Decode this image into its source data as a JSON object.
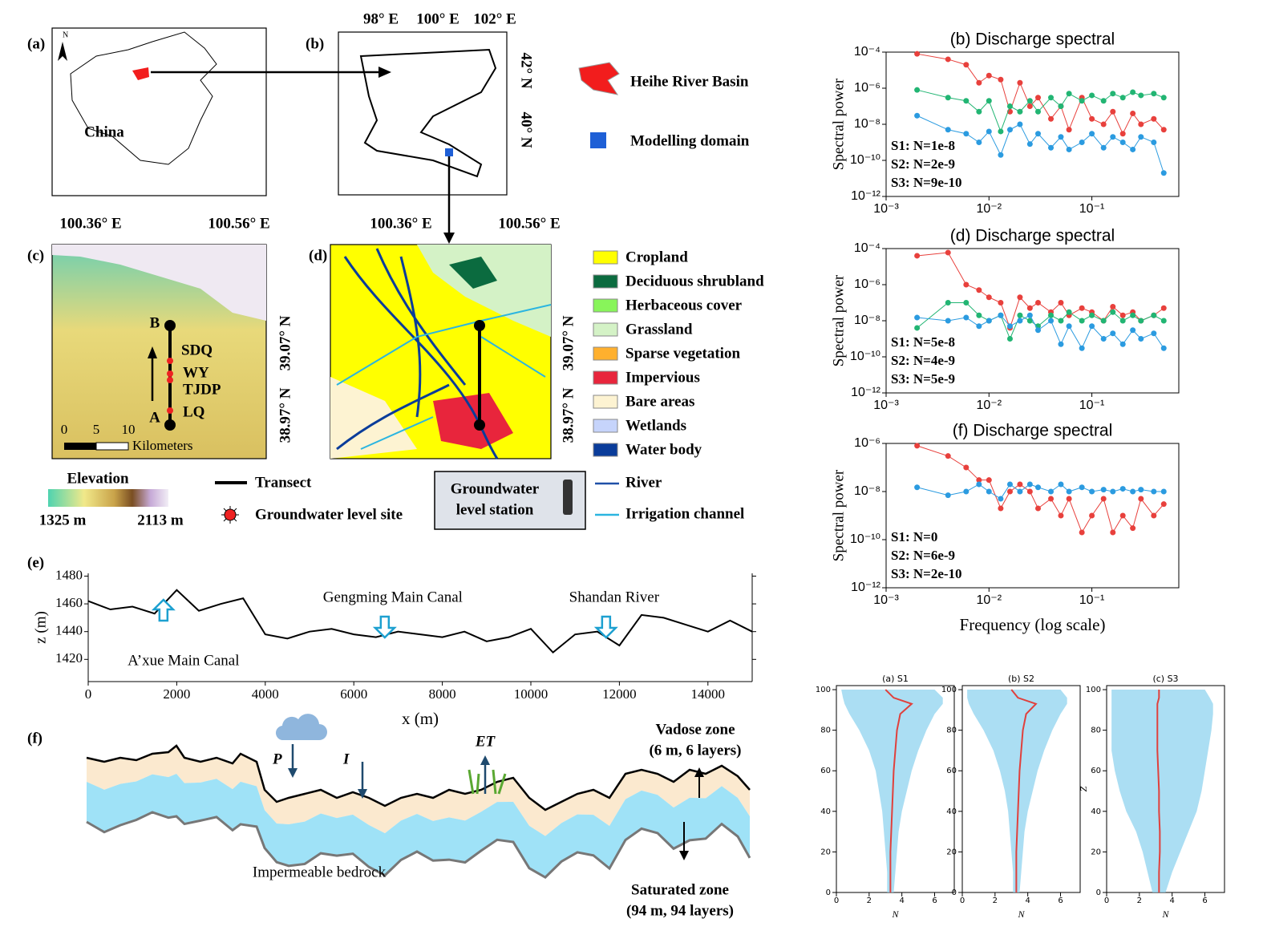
{
  "maps": {
    "a": {
      "label": "(a)",
      "north": "N",
      "country": "China"
    },
    "b": {
      "label": "(b)",
      "lon": [
        "98° E",
        "100° E",
        "102° E"
      ],
      "lat": [
        "42° N",
        "40° N"
      ]
    },
    "c": {
      "label": "(c)",
      "lon": [
        "100.36° E",
        "100.56° E"
      ],
      "lat": [
        "39.07° N",
        "38.97° N"
      ],
      "sites": [
        "SDQ",
        "WY",
        "TJDP",
        "LQ"
      ],
      "ends": [
        "B",
        "A"
      ],
      "scale": [
        "0",
        "5",
        "10"
      ],
      "scale_unit": "Kilometers"
    },
    "d": {
      "label": "(d)",
      "lon": [
        "100.36° E",
        "100.56° E"
      ],
      "lat": [
        "39.07° N",
        "38.97° N"
      ]
    },
    "basin_legend": [
      {
        "name": "Heihe River Basin",
        "color": "#f21d1d"
      },
      {
        "name": "Modelling domain",
        "color": "#1e5fd6"
      }
    ],
    "landcover": [
      {
        "name": "Cropland",
        "color": "#ffff00"
      },
      {
        "name": "Deciduous shrubland",
        "color": "#0b6b3f"
      },
      {
        "name": "Herbaceous cover",
        "color": "#88f55a"
      },
      {
        "name": "Grassland",
        "color": "#d4f2c6"
      },
      {
        "name": "Sparse vegetation",
        "color": "#ffb02e"
      },
      {
        "name": "Impervious",
        "color": "#e8253c"
      },
      {
        "name": "Bare areas",
        "color": "#fdf3d2"
      },
      {
        "name": "Wetlands",
        "color": "#c6d4fb"
      },
      {
        "name": "Water body",
        "color": "#0a3c9a"
      }
    ],
    "elevation": {
      "title": "Elevation",
      "min": "1325 m",
      "max": "2113 m"
    },
    "symbols": {
      "transect": "Transect",
      "site": "Groundwater level site",
      "station": [
        "Groundwater",
        "level station"
      ],
      "river": {
        "name": "River",
        "color": "#2050a8"
      },
      "channel": {
        "name": "Irrigation channel",
        "color": "#2bb5e0"
      }
    }
  },
  "schematic": {
    "label": "(f)",
    "P": "P",
    "I": "I",
    "ET": "ET",
    "vadose": [
      "Vadose zone",
      "(6 m, 6 layers)"
    ],
    "saturated": [
      "Saturated zone",
      "(94 m, 94 layers)"
    ],
    "bedrock": "Impermeable bedrock"
  },
  "chart_data": [
    {
      "type": "line",
      "label": "(e)",
      "xlabel": "x (m)",
      "ylabel": "z (m)",
      "color": "#000000",
      "x": [
        0,
        500,
        1000,
        1500,
        2000,
        2500,
        3000,
        3500,
        4000,
        4500,
        5000,
        5500,
        6000,
        6500,
        7000,
        7500,
        8000,
        8500,
        9000,
        9500,
        10000,
        10500,
        11000,
        11500,
        12000,
        12500,
        13000,
        13500,
        14000,
        14500,
        15000
      ],
      "values": [
        1462,
        1456,
        1458,
        1453,
        1470,
        1455,
        1460,
        1464,
        1438,
        1435,
        1440,
        1442,
        1438,
        1436,
        1440,
        1438,
        1436,
        1440,
        1433,
        1436,
        1442,
        1425,
        1438,
        1440,
        1430,
        1452,
        1450,
        1445,
        1440,
        1448,
        1440
      ],
      "xlim": [
        0,
        15000
      ],
      "ylim": [
        1404,
        1482
      ],
      "xticks": [
        0,
        2000,
        4000,
        6000,
        8000,
        10000,
        12000,
        14000
      ],
      "yticks": [
        1420,
        1440,
        1460,
        1480
      ],
      "annotations": [
        {
          "text": "A’xue Main Canal",
          "x": 1700,
          "direction": "up"
        },
        {
          "text": "Gengming Main Canal",
          "x": 6700,
          "direction": "down"
        },
        {
          "text": "Shandan River",
          "x": 11700,
          "direction": "down"
        }
      ]
    },
    {
      "type": "line",
      "markers": true,
      "xlog": true,
      "ylog": true,
      "title": "(b) Discharge spectral",
      "ylabel": "Spectral power",
      "x": [
        0.002,
        0.004,
        0.006,
        0.008,
        0.01,
        0.013,
        0.016,
        0.02,
        0.025,
        0.03,
        0.04,
        0.05,
        0.06,
        0.08,
        0.1,
        0.13,
        0.16,
        0.2,
        0.25,
        0.3,
        0.4,
        0.5
      ],
      "series": [
        {
          "color": "#e8403c",
          "values": [
            8e-05,
            4e-05,
            2e-05,
            2e-06,
            5e-06,
            3e-06,
            5e-08,
            2e-06,
            1e-07,
            3e-07,
            2e-08,
            1e-07,
            5e-09,
            3e-07,
            2e-08,
            1e-08,
            5e-08,
            3e-09,
            4e-08,
            1e-08,
            2e-08,
            5e-09
          ]
        },
        {
          "color": "#22b573",
          "values": [
            8e-07,
            3e-07,
            2e-07,
            5e-08,
            2e-07,
            4e-09,
            1e-07,
            5e-08,
            2e-07,
            5e-08,
            3e-07,
            1e-07,
            5e-07,
            2e-07,
            4e-07,
            2e-07,
            5e-07,
            3e-07,
            6e-07,
            4e-07,
            5e-07,
            3e-07
          ]
        },
        {
          "color": "#2b9be0",
          "values": [
            3e-08,
            5e-09,
            3e-09,
            1e-09,
            4e-09,
            2e-10,
            5e-09,
            1e-08,
            8e-10,
            3e-09,
            5e-10,
            2e-09,
            4e-10,
            1e-09,
            3e-09,
            5e-10,
            2e-09,
            1e-09,
            4e-10,
            2e-09,
            1e-09,
            2e-11
          ]
        }
      ],
      "xlim": [
        0.001,
        0.7
      ],
      "ylim": [
        1e-12,
        0.0001
      ],
      "xticks": [
        {
          "value": 0.001,
          "label": "10⁻³"
        },
        {
          "value": 0.01,
          "label": "10⁻²"
        },
        {
          "value": 0.1,
          "label": "10⁻¹"
        }
      ],
      "yticks": [
        {
          "value": 1e-12,
          "label": "10⁻¹²"
        },
        {
          "value": 1e-10,
          "label": "10⁻¹⁰"
        },
        {
          "value": 1e-08,
          "label": "10⁻⁸"
        },
        {
          "value": 1e-06,
          "label": "10⁻⁶"
        },
        {
          "value": 0.0001,
          "label": "10⁻⁴"
        }
      ],
      "notes": [
        "S1: N=1e-8",
        "S2: N=2e-9",
        "S3: N=9e-10"
      ]
    },
    {
      "type": "line",
      "markers": true,
      "xlog": true,
      "ylog": true,
      "title": "(d) Discharge spectral",
      "ylabel": "Spectral power",
      "x": [
        0.002,
        0.004,
        0.006,
        0.008,
        0.01,
        0.013,
        0.016,
        0.02,
        0.025,
        0.03,
        0.04,
        0.05,
        0.06,
        0.08,
        0.1,
        0.13,
        0.16,
        0.2,
        0.25,
        0.3,
        0.4,
        0.5
      ],
      "series": [
        {
          "color": "#e8403c",
          "values": [
            4e-05,
            6e-05,
            1e-06,
            5e-07,
            2e-07,
            1e-07,
            4e-09,
            2e-07,
            5e-08,
            1e-07,
            3e-08,
            1e-07,
            2e-08,
            5e-08,
            3e-08,
            1e-08,
            6e-08,
            2e-08,
            3e-08,
            1e-08,
            2e-08,
            5e-08
          ]
        },
        {
          "color": "#22b573",
          "values": [
            4e-09,
            1e-07,
            1e-07,
            2e-08,
            1e-08,
            2e-08,
            1e-09,
            2e-08,
            1e-08,
            5e-09,
            2e-08,
            1e-08,
            3e-08,
            1e-08,
            2e-08,
            1e-08,
            3e-08,
            1e-08,
            2e-08,
            1e-08,
            2e-08,
            1e-08
          ]
        },
        {
          "color": "#2b9be0",
          "values": [
            1.5e-08,
            1e-08,
            1.5e-08,
            5e-09,
            1e-08,
            2e-08,
            5e-09,
            1e-08,
            2e-08,
            3e-09,
            1e-08,
            5e-10,
            5e-09,
            3e-10,
            5e-09,
            1e-09,
            2e-09,
            5e-10,
            3e-09,
            1e-09,
            2e-09,
            3e-10
          ]
        }
      ],
      "xlim": [
        0.001,
        0.7
      ],
      "ylim": [
        1e-12,
        0.0001
      ],
      "xticks": [
        {
          "value": 0.001,
          "label": "10⁻³"
        },
        {
          "value": 0.01,
          "label": "10⁻²"
        },
        {
          "value": 0.1,
          "label": "10⁻¹"
        }
      ],
      "yticks": [
        {
          "value": 1e-12,
          "label": "10⁻¹²"
        },
        {
          "value": 1e-10,
          "label": "10⁻¹⁰"
        },
        {
          "value": 1e-08,
          "label": "10⁻⁸"
        },
        {
          "value": 1e-06,
          "label": "10⁻⁶"
        },
        {
          "value": 0.0001,
          "label": "10⁻⁴"
        }
      ],
      "notes": [
        "S1: N=5e-8",
        "S2: N=4e-9",
        "S3: N=5e-9"
      ]
    },
    {
      "type": "line",
      "markers": true,
      "xlog": true,
      "ylog": true,
      "title": "(f) Discharge spectral",
      "ylabel": "Spectral power",
      "xlabel": "Frequency (log scale)",
      "x": [
        0.002,
        0.004,
        0.006,
        0.008,
        0.01,
        0.013,
        0.016,
        0.02,
        0.025,
        0.03,
        0.04,
        0.05,
        0.06,
        0.08,
        0.1,
        0.13,
        0.16,
        0.2,
        0.25,
        0.3,
        0.4,
        0.5
      ],
      "series": [
        {
          "color": "#e8403c",
          "values": [
            8e-07,
            3e-07,
            1e-07,
            3e-08,
            3e-08,
            2e-09,
            1e-08,
            2e-08,
            1e-08,
            2e-09,
            5e-09,
            1e-09,
            5e-09,
            2e-10,
            1e-09,
            5e-09,
            2e-10,
            1e-09,
            3e-10,
            5e-09,
            1e-09,
            3e-09
          ]
        },
        {
          "color": "#2b9be0",
          "values": [
            1.5e-08,
            7e-09,
            1e-08,
            2e-08,
            1e-08,
            5e-09,
            2e-08,
            1e-08,
            2e-08,
            1.5e-08,
            1e-08,
            2e-08,
            1e-08,
            1.5e-08,
            1e-08,
            1.2e-08,
            1e-08,
            1.3e-08,
            1e-08,
            1.2e-08,
            1e-08,
            1e-08
          ]
        }
      ],
      "xlim": [
        0.001,
        0.7
      ],
      "ylim": [
        1e-12,
        1e-06
      ],
      "xticks": [
        {
          "value": 0.001,
          "label": "10⁻³"
        },
        {
          "value": 0.01,
          "label": "10⁻²"
        },
        {
          "value": 0.1,
          "label": "10⁻¹"
        }
      ],
      "yticks": [
        {
          "value": 1e-12,
          "label": "10⁻¹²"
        },
        {
          "value": 1e-10,
          "label": "10⁻¹⁰"
        },
        {
          "value": 1e-08,
          "label": "10⁻⁸"
        },
        {
          "value": 1e-06,
          "label": "10⁻⁶"
        }
      ],
      "notes": [
        "S1: N=0",
        "S2: N=6e-9",
        "S3: N=2e-10"
      ]
    },
    {
      "type": "line",
      "title": "(a) S1",
      "xlabel": "N",
      "y": [
        0,
        10,
        20,
        30,
        40,
        50,
        60,
        70,
        80,
        88,
        93,
        96,
        100
      ],
      "series": [
        {
          "color": "#e0403c",
          "values": [
            3.3,
            3.3,
            3.3,
            3.35,
            3.4,
            3.45,
            3.5,
            3.6,
            3.7,
            3.9,
            4.6,
            3.5,
            3.0
          ]
        }
      ],
      "band": {
        "color": "#8fd3ef",
        "lower": [
          3.1,
          3.1,
          3.0,
          2.9,
          2.8,
          2.6,
          2.4,
          2.0,
          1.4,
          0.8,
          0.5,
          0.4,
          0.3
        ],
        "upper": [
          3.5,
          3.6,
          3.7,
          3.8,
          4.0,
          4.3,
          4.6,
          5.0,
          5.5,
          6.0,
          6.5,
          6.5,
          6.0
        ]
      },
      "xlim": [
        0,
        7.2
      ],
      "ylim": [
        0,
        102
      ],
      "xticks": [
        0,
        2,
        4,
        6
      ],
      "yticks": [
        0,
        20,
        40,
        60,
        80,
        100
      ]
    },
    {
      "type": "line",
      "title": "(b) S2",
      "xlabel": "N",
      "y": [
        0,
        10,
        20,
        30,
        40,
        50,
        60,
        70,
        80,
        88,
        93,
        96,
        100
      ],
      "series": [
        {
          "color": "#e0403c",
          "values": [
            3.3,
            3.3,
            3.3,
            3.35,
            3.4,
            3.45,
            3.5,
            3.6,
            3.7,
            3.9,
            4.5,
            3.4,
            3.0
          ]
        }
      ],
      "band": {
        "color": "#8fd3ef",
        "lower": [
          3.1,
          3.1,
          3.0,
          2.9,
          2.8,
          2.6,
          2.3,
          1.9,
          1.3,
          0.7,
          0.4,
          0.3,
          0.3
        ],
        "upper": [
          3.5,
          3.6,
          3.7,
          3.8,
          4.0,
          4.3,
          4.6,
          5.0,
          5.5,
          6.0,
          6.4,
          6.4,
          6.0
        ]
      },
      "xlim": [
        0,
        7.2
      ],
      "ylim": [
        0,
        102
      ],
      "xticks": [
        0,
        2,
        4,
        6
      ],
      "yticks": [
        0,
        20,
        40,
        60,
        80,
        100
      ]
    },
    {
      "type": "line",
      "title": "(c) S3",
      "xlabel": "N",
      "ylabel": "Z",
      "y": [
        0,
        10,
        20,
        30,
        40,
        50,
        60,
        70,
        80,
        88,
        93,
        96,
        100
      ],
      "series": [
        {
          "color": "#e0403c",
          "values": [
            3.2,
            3.2,
            3.25,
            3.25,
            3.2,
            3.2,
            3.15,
            3.1,
            3.1,
            3.1,
            3.1,
            3.2,
            3.2
          ]
        }
      ],
      "band": {
        "color": "#8fd3ef",
        "lower": [
          2.8,
          2.5,
          2.2,
          1.8,
          1.2,
          0.8,
          0.5,
          0.3,
          0.3,
          0.3,
          0.3,
          0.3,
          0.3
        ],
        "upper": [
          3.6,
          4.0,
          4.5,
          5.0,
          5.5,
          5.8,
          6.0,
          6.2,
          6.4,
          6.5,
          6.5,
          6.3,
          6.0
        ]
      },
      "xlim": [
        0,
        7.2
      ],
      "ylim": [
        0,
        102
      ],
      "xticks": [
        0,
        2,
        4,
        6
      ],
      "yticks": [
        0,
        20,
        40,
        60,
        80,
        100
      ]
    }
  ]
}
